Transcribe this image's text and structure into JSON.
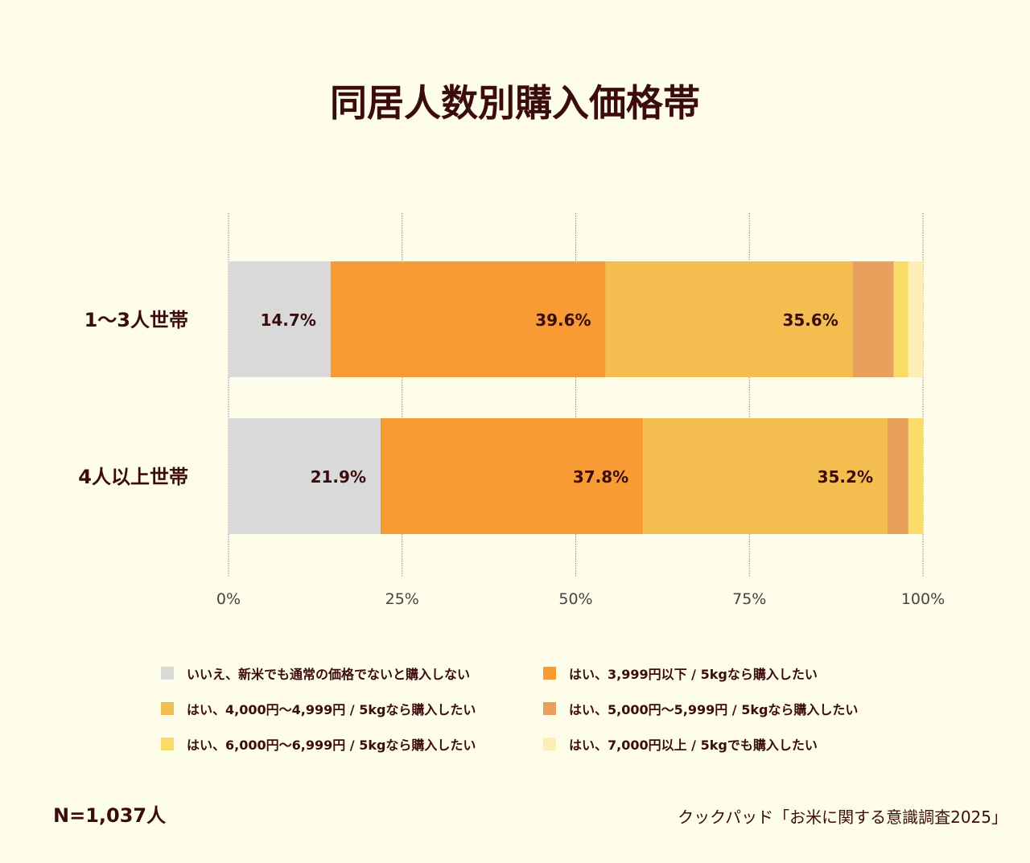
{
  "title": "同居人数別購入価格帯",
  "chart_data": {
    "type": "bar",
    "orientation": "horizontal",
    "stacked": true,
    "categories": [
      "1〜3人世帯",
      "4人以上世帯"
    ],
    "series": [
      {
        "name": "いいえ、新米でも通常の価格でないと購入しない",
        "color": "#d9d9d9",
        "values": [
          14.7,
          21.9
        ],
        "labels": [
          "14.7%",
          "21.9%"
        ]
      },
      {
        "name": "はい、3,999円以下 / 5kgなら購入したい",
        "color": "#f99b35",
        "values": [
          39.6,
          37.8
        ],
        "labels": [
          "39.6%",
          "37.8%"
        ]
      },
      {
        "name": "はい、4,000円〜4,999円 / 5kgなら購入したい",
        "color": "#f3bd4f",
        "values": [
          35.6,
          35.2
        ],
        "labels": [
          "35.6%",
          "35.2%"
        ]
      },
      {
        "name": "はい、5,000円〜5,999円 / 5kgなら購入したい",
        "color": "#e9a05c",
        "values": [
          5.9,
          3.0
        ],
        "labels": [
          "",
          ""
        ]
      },
      {
        "name": "はい、6,000円〜6,999円 / 5kgなら購入したい",
        "color": "#fbdc6a",
        "values": [
          2.1,
          2.1
        ],
        "labels": [
          "",
          ""
        ]
      },
      {
        "name": "はい、7,000円以上 / 5kgでも購入したい",
        "color": "#fdeeb5",
        "values": [
          2.1,
          0
        ],
        "labels": [
          "",
          ""
        ]
      }
    ],
    "xlim": [
      0,
      100
    ],
    "xticks": [
      "0%",
      "25%",
      "50%",
      "75%",
      "100%"
    ],
    "grid": true,
    "legend_position": "bottom"
  },
  "footer": {
    "n": "N=1,037人",
    "source": "クックパッド「お米に関する意識調査2025」"
  }
}
